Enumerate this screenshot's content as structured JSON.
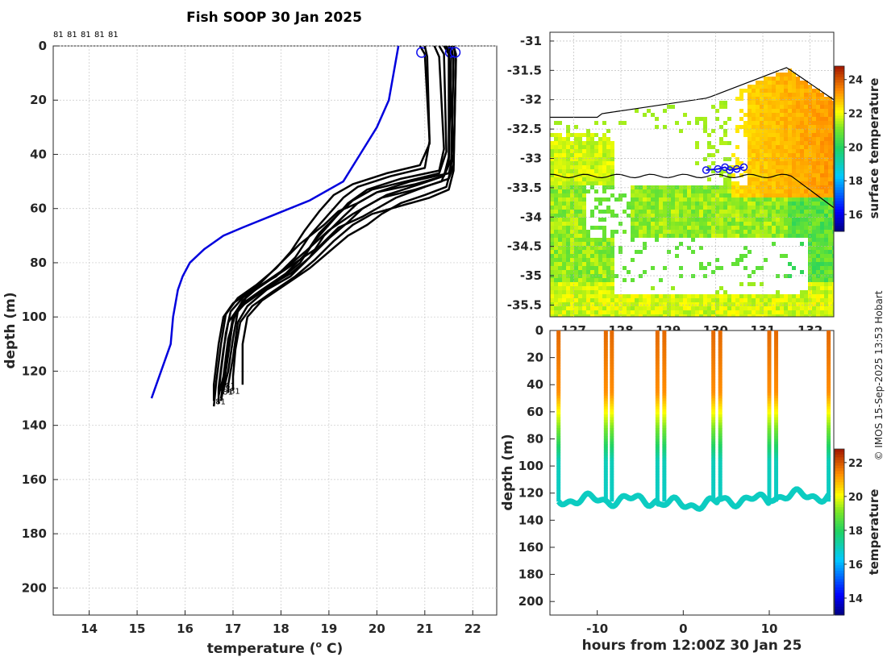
{
  "title": "Fish SOOP 30 Jan 2025",
  "credit": "© IMOS 15-Sep-2025 13:53 Hobart",
  "chart_data": [
    {
      "type": "line",
      "name": "profiles",
      "xlabel": "temperature (",
      "xlabel_sup": "o",
      "xlabel_end": " C)",
      "ylabel": "depth (m)",
      "xlim": [
        13.25,
        22.5
      ],
      "ylim": [
        0,
        210
      ],
      "xticks": [
        "14",
        "15",
        "16",
        "17",
        "18",
        "19",
        "20",
        "21",
        "22"
      ],
      "yticks": [
        "0",
        "20",
        "40",
        "60",
        "80",
        "100",
        "120",
        "140",
        "160",
        "180",
        "200"
      ],
      "top_labels": [
        "81",
        "81",
        "81",
        "81",
        "81"
      ],
      "end_labels": [
        "81",
        "81",
        "81",
        "81",
        "81"
      ],
      "climatology": {
        "color": "#0000dd",
        "points": [
          [
            20.45,
            0
          ],
          [
            20.35,
            10
          ],
          [
            20.25,
            20
          ],
          [
            20.0,
            30
          ],
          [
            19.65,
            40
          ],
          [
            19.3,
            50
          ],
          [
            18.6,
            57
          ],
          [
            17.9,
            62
          ],
          [
            17.2,
            67
          ],
          [
            16.8,
            70
          ],
          [
            16.4,
            75
          ],
          [
            16.1,
            80
          ],
          [
            15.95,
            85
          ],
          [
            15.85,
            90
          ],
          [
            15.75,
            100
          ],
          [
            15.7,
            110
          ],
          [
            15.5,
            120
          ],
          [
            15.3,
            130
          ]
        ]
      },
      "series": [
        {
          "points": [
            [
              20.9,
              0
            ],
            [
              21.0,
              3
            ],
            [
              21.1,
              35
            ],
            [
              21.0,
              45
            ],
            [
              20.3,
              48
            ],
            [
              19.6,
              52
            ],
            [
              19.3,
              56
            ],
            [
              19.0,
              62
            ],
            [
              18.6,
              70
            ],
            [
              18.3,
              78
            ],
            [
              17.9,
              85
            ],
            [
              17.4,
              90
            ],
            [
              17.0,
              95
            ],
            [
              16.8,
              100
            ],
            [
              16.7,
              110
            ],
            [
              16.6,
              125
            ],
            [
              16.6,
              131
            ]
          ]
        },
        {
          "points": [
            [
              21.2,
              0
            ],
            [
              21.3,
              4
            ],
            [
              21.4,
              38
            ],
            [
              21.3,
              46
            ],
            [
              20.5,
              49
            ],
            [
              19.8,
              53
            ],
            [
              19.4,
              58
            ],
            [
              19.1,
              64
            ],
            [
              18.7,
              72
            ],
            [
              18.4,
              80
            ],
            [
              18.0,
              86
            ],
            [
              17.5,
              92
            ],
            [
              17.1,
              97
            ],
            [
              16.9,
              102
            ],
            [
              16.8,
              112
            ],
            [
              16.7,
              126
            ],
            [
              16.7,
              132
            ]
          ]
        },
        {
          "points": [
            [
              21.4,
              0
            ],
            [
              21.5,
              3
            ],
            [
              21.6,
              40
            ],
            [
              21.5,
              47
            ],
            [
              20.7,
              50
            ],
            [
              20.0,
              54
            ],
            [
              19.6,
              58
            ],
            [
              19.3,
              63
            ],
            [
              18.9,
              70
            ],
            [
              18.6,
              78
            ],
            [
              18.2,
              85
            ],
            [
              17.7,
              90
            ],
            [
              17.3,
              96
            ],
            [
              17.1,
              102
            ],
            [
              17.0,
              115
            ],
            [
              16.9,
              125
            ],
            [
              16.9,
              128
            ]
          ]
        },
        {
          "points": [
            [
              21.5,
              0
            ],
            [
              21.6,
              4
            ],
            [
              21.55,
              42
            ],
            [
              21.4,
              48
            ],
            [
              20.9,
              51
            ],
            [
              20.2,
              55
            ],
            [
              19.8,
              59
            ],
            [
              19.5,
              62
            ],
            [
              19.0,
              68
            ],
            [
              18.5,
              76
            ],
            [
              18.1,
              82
            ],
            [
              17.6,
              88
            ],
            [
              17.2,
              94
            ],
            [
              17.0,
              100
            ],
            [
              16.9,
              110
            ],
            [
              16.8,
              124
            ],
            [
              16.75,
              130
            ]
          ]
        },
        {
          "points": [
            [
              21.6,
              0
            ],
            [
              21.65,
              3
            ],
            [
              21.6,
              44
            ],
            [
              21.5,
              49
            ],
            [
              21.0,
              52
            ],
            [
              20.4,
              56
            ],
            [
              20.0,
              60
            ],
            [
              19.7,
              63
            ],
            [
              19.2,
              67
            ],
            [
              18.8,
              74
            ],
            [
              18.3,
              80
            ],
            [
              17.8,
              86
            ],
            [
              17.3,
              92
            ],
            [
              17.1,
              98
            ],
            [
              17.0,
              108
            ],
            [
              16.9,
              120
            ],
            [
              16.8,
              127
            ]
          ]
        },
        {
          "points": [
            [
              21.55,
              0
            ],
            [
              21.6,
              5
            ],
            [
              21.55,
              45
            ],
            [
              21.45,
              52
            ],
            [
              21.0,
              55
            ],
            [
              20.5,
              58
            ],
            [
              20.1,
              62
            ],
            [
              19.8,
              66
            ],
            [
              19.4,
              70
            ],
            [
              19.0,
              76
            ],
            [
              18.6,
              82
            ],
            [
              18.1,
              88
            ],
            [
              17.6,
              94
            ],
            [
              17.3,
              100
            ],
            [
              17.2,
              110
            ],
            [
              17.2,
              120
            ],
            [
              17.2,
              125
            ]
          ]
        },
        {
          "points": [
            [
              21.5,
              0
            ],
            [
              21.55,
              4
            ],
            [
              21.5,
              43
            ],
            [
              21.35,
              50
            ],
            [
              20.8,
              53
            ],
            [
              20.1,
              56
            ],
            [
              19.7,
              60
            ],
            [
              19.4,
              65
            ],
            [
              19.0,
              71
            ],
            [
              18.6,
              78
            ],
            [
              18.2,
              84
            ],
            [
              17.7,
              89
            ],
            [
              17.3,
              94
            ],
            [
              17.05,
              99
            ],
            [
              16.9,
              108
            ],
            [
              16.8,
              122
            ],
            [
              16.7,
              129
            ]
          ]
        },
        {
          "points": [
            [
              21.0,
              0
            ],
            [
              21.05,
              4
            ],
            [
              21.1,
              36
            ],
            [
              20.9,
              44
            ],
            [
              20.2,
              47
            ],
            [
              19.5,
              51
            ],
            [
              19.1,
              55
            ],
            [
              18.8,
              61
            ],
            [
              18.5,
              68
            ],
            [
              18.2,
              76
            ],
            [
              17.9,
              82
            ],
            [
              17.5,
              88
            ],
            [
              17.1,
              93
            ],
            [
              16.85,
              99
            ],
            [
              16.75,
              110
            ],
            [
              16.65,
              124
            ],
            [
              16.6,
              133
            ]
          ]
        },
        {
          "points": [
            [
              21.3,
              0
            ],
            [
              21.4,
              3
            ],
            [
              21.45,
              39
            ],
            [
              21.3,
              47
            ],
            [
              20.6,
              50
            ],
            [
              19.9,
              53
            ],
            [
              19.5,
              57
            ],
            [
              19.2,
              62
            ],
            [
              18.8,
              69
            ],
            [
              18.5,
              77
            ],
            [
              18.1,
              84
            ],
            [
              17.6,
              90
            ],
            [
              17.2,
              95
            ],
            [
              17.0,
              101
            ],
            [
              16.9,
              114
            ],
            [
              16.8,
              126
            ],
            [
              16.75,
              131
            ]
          ]
        },
        {
          "points": [
            [
              21.6,
              0
            ],
            [
              21.65,
              5
            ],
            [
              21.6,
              46
            ],
            [
              21.5,
              53
            ],
            [
              21.1,
              56
            ],
            [
              20.5,
              59
            ],
            [
              19.9,
              62
            ],
            [
              19.5,
              66
            ],
            [
              19.1,
              72
            ],
            [
              18.7,
              79
            ],
            [
              18.3,
              85
            ],
            [
              17.8,
              91
            ],
            [
              17.4,
              96
            ],
            [
              17.15,
              102
            ],
            [
              17.05,
              112
            ],
            [
              17.0,
              122
            ],
            [
              17.0,
              127
            ]
          ]
        },
        {
          "points": [
            [
              21.45,
              0
            ],
            [
              21.5,
              3
            ],
            [
              21.5,
              41
            ],
            [
              21.4,
              48
            ],
            [
              20.8,
              51
            ],
            [
              20.0,
              54
            ],
            [
              19.6,
              58
            ],
            [
              19.2,
              61
            ],
            [
              18.9,
              66
            ],
            [
              18.4,
              73
            ],
            [
              18.0,
              80
            ],
            [
              17.6,
              87
            ],
            [
              17.2,
              93
            ],
            [
              16.95,
              98
            ],
            [
              16.85,
              106
            ],
            [
              16.75,
              120
            ],
            [
              16.7,
              128
            ]
          ]
        }
      ]
    },
    {
      "type": "heatmap",
      "name": "map",
      "colorbar_label": "surface temperature",
      "xticks": [
        "127",
        "128",
        "129",
        "130",
        "131",
        "132"
      ],
      "yticks": [
        "-31",
        "-31.5",
        "-32",
        "-32.5",
        "-33",
        "-33.5",
        "-34",
        "-34.5",
        "-35",
        "-35.5"
      ],
      "colorbar_ticks": [
        "16",
        "18",
        "20",
        "22",
        "24"
      ],
      "colorbar_range": [
        15,
        24.8
      ],
      "xlim": [
        126.5,
        132.5
      ],
      "ylim": [
        -35.7,
        -30.85
      ],
      "track": [
        [
          129.8,
          -33.2
        ],
        [
          130.05,
          -33.18
        ],
        [
          130.2,
          -33.15
        ],
        [
          130.3,
          -33.2
        ],
        [
          130.45,
          -33.18
        ],
        [
          130.6,
          -33.15
        ]
      ]
    },
    {
      "type": "scatter",
      "name": "section",
      "xlabel": "hours from 12:00Z 30 Jan 25",
      "ylabel": "depth (m)",
      "colorbar_label": "temperature",
      "xticks": [
        "-10",
        "0",
        "10"
      ],
      "xtick_values": [
        -10,
        0,
        10
      ],
      "yticks": [
        "0",
        "20",
        "40",
        "60",
        "80",
        "100",
        "120",
        "140",
        "160",
        "180",
        "200"
      ],
      "colorbar_ticks": [
        "14",
        "16",
        "18",
        "20",
        "22"
      ],
      "colorbar_range": [
        13,
        22.8
      ],
      "xlim": [
        -15.5,
        17.5
      ],
      "ylim": [
        0,
        210
      ],
      "profile_times": [
        -14.5,
        -9.0,
        -8.3,
        -3.0,
        -2.2,
        3.5,
        4.3,
        10.0,
        10.8,
        16.9
      ],
      "bottom_depth": 125
    }
  ]
}
